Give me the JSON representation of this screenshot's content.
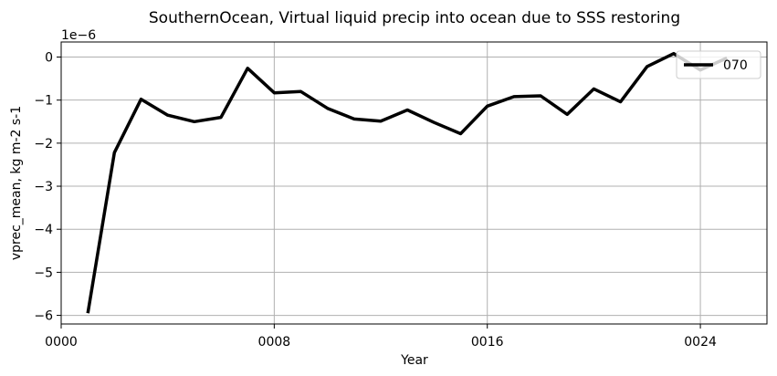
{
  "chart_data": {
    "type": "line",
    "title": "SouthernOcean, Virtual liquid precip into ocean due to SSS restoring",
    "xlabel": "Year",
    "ylabel": "vprec_mean, kg m-2 s-1",
    "offset_text": "1e−6",
    "xlim": [
      0,
      26.5
    ],
    "ylim": [
      -6.2,
      0.35
    ],
    "x_ticks": [
      {
        "value": 0,
        "label": "0000"
      },
      {
        "value": 8,
        "label": "0008"
      },
      {
        "value": 16,
        "label": "0016"
      },
      {
        "value": 24,
        "label": "0024"
      }
    ],
    "y_ticks": [
      {
        "value": 0,
        "label": "0"
      },
      {
        "value": -1,
        "label": "−1"
      },
      {
        "value": -2,
        "label": "−2"
      },
      {
        "value": -3,
        "label": "−3"
      },
      {
        "value": -4,
        "label": "−4"
      },
      {
        "value": -5,
        "label": "−5"
      },
      {
        "value": -6,
        "label": "−6"
      }
    ],
    "grid": true,
    "legend_position": "upper right",
    "series": [
      {
        "name": "070",
        "color": "#000000",
        "x": [
          1,
          2,
          3,
          4,
          5,
          6,
          7,
          8,
          9,
          10,
          11,
          12,
          13,
          14,
          15,
          16,
          17,
          18,
          19,
          20,
          21,
          22,
          23,
          24,
          25
        ],
        "values": [
          -5.95,
          -2.22,
          -0.98,
          -1.35,
          -1.5,
          -1.4,
          -0.26,
          -0.83,
          -0.8,
          -1.19,
          -1.44,
          -1.49,
          -1.23,
          -1.52,
          -1.78,
          -1.14,
          -0.92,
          -0.9,
          -1.33,
          -0.74,
          -1.04,
          -0.22,
          0.08,
          -0.3,
          -0.02
        ]
      }
    ]
  }
}
